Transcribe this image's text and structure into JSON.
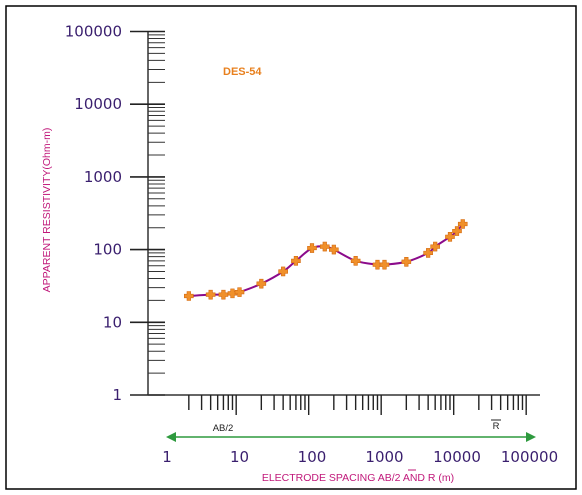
{
  "chart_data": {
    "type": "line",
    "title": "DES-54",
    "xlabel": "ELECTRODE SPACING AB/2 AND R (m)",
    "ylabel": "APPARENT RESISTIVITY(Ohm-m)",
    "x_scale": "log",
    "y_scale": "log",
    "xlim": [
      1,
      100000
    ],
    "ylim": [
      1,
      100000
    ],
    "x_ticks": [
      "1",
      "10",
      "100",
      "1000",
      "10000",
      "100000"
    ],
    "y_ticks": [
      "1",
      "10",
      "100",
      "1000",
      "10000",
      "100000"
    ],
    "grid": false,
    "scale_labels": {
      "left": "AB/2",
      "right": "R"
    },
    "colors": {
      "curve": "#8b0a8b",
      "markers": "#f0902a",
      "title": "#e8801e",
      "axis_title": "#c0187a",
      "tick_labels": "#3a1f6e",
      "arrow": "#2e9a3e"
    },
    "series": [
      {
        "x": [
          2,
          4,
          6,
          8,
          10,
          20,
          40,
          60,
          100,
          150,
          200,
          400,
          800,
          1000,
          2000,
          4000,
          5000,
          8000,
          10000,
          12000
        ],
        "y": [
          23,
          24,
          24,
          25,
          26,
          34,
          50,
          70,
          105,
          110,
          100,
          70,
          62,
          62,
          68,
          90,
          110,
          150,
          180,
          225
        ]
      }
    ]
  }
}
